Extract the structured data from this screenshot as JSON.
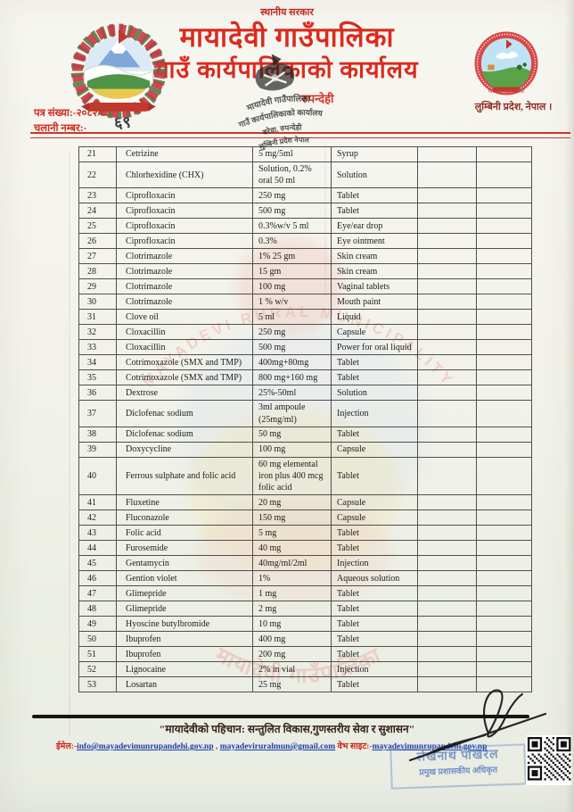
{
  "header": {
    "top_label": "स्थानीय सरकार",
    "title_line1": "मायादेवी गाउँपालिका",
    "title_line2": "गाउँ कार्यपालिकाको कार्यालय",
    "district_line": "रुपन्देही",
    "province_line": "लुम्बिनी प्रदेश, नेपाल ।",
    "letter_no_label": "पत्र संख्या:-",
    "letter_no": "२०८२/८३",
    "dispatch_label": "चलानी नम्बर:-",
    "dispatch_no": "६९",
    "right_logo_caption": "मायादेवी गाउँपालिका",
    "seal_lines": [
      "मायादेवी गाउँपालिका",
      "गाउँ कार्यपालिकाको कार्यालय",
      "बरेवा, रुपन्देही",
      "लुम्बिनी प्रदेश नेपाल"
    ]
  },
  "watermark": {
    "arc_text_en": "MAYADEVI RURAL MUNICIPALITY",
    "arc_text_np": "मायादेवी गाउँपालिका"
  },
  "table": {
    "rows": [
      {
        "sn": "21",
        "name": "Cetrizine",
        "strength": "5 mg/5ml",
        "form": "Syrup"
      },
      {
        "sn": "22",
        "name": "Chlorhexidine (CHX)",
        "strength": "Solution, 0.2% oral 50 ml",
        "form": "Solution"
      },
      {
        "sn": "23",
        "name": "Ciprofloxacin",
        "strength": "250 mg",
        "form": "Tablet"
      },
      {
        "sn": "24",
        "name": "Ciprofloxacin",
        "strength": "500 mg",
        "form": "Tablet"
      },
      {
        "sn": "25",
        "name": "Ciprofloxacin",
        "strength": "0.3%w/v 5 ml",
        "form": "Eye/ear drop"
      },
      {
        "sn": "26",
        "name": "Ciprofloxacin",
        "strength": "0.3%",
        "form": "Eye ointment"
      },
      {
        "sn": "27",
        "name": "Clotrimazole",
        "strength": "1% 25 gm",
        "form": "Skin cream"
      },
      {
        "sn": "28",
        "name": "Clotrimazole",
        "strength": "15 gm",
        "form": "Skin cream"
      },
      {
        "sn": "29",
        "name": "Clotrimazole",
        "strength": "100 mg",
        "form": "Vaginal tablets"
      },
      {
        "sn": "30",
        "name": "Clotrimazole",
        "strength": "1 % w/v",
        "form": "Mouth paint"
      },
      {
        "sn": "31",
        "name": "Clove oil",
        "strength": "5 ml",
        "form": "Liquid"
      },
      {
        "sn": "32",
        "name": "Cloxacillin",
        "strength": "250 mg",
        "form": "Capsule"
      },
      {
        "sn": "33",
        "name": "Cloxacillin",
        "strength": "500 mg",
        "form": "Power for oral liquid"
      },
      {
        "sn": "34",
        "name": "Cotrimoxazole (SMX and TMP)",
        "strength": "400mg+80mg",
        "form": "Tablet"
      },
      {
        "sn": "35",
        "name": "Cotrimoxazole (SMX and TMP)",
        "strength": "800 mg+160 mg",
        "form": "Tablet"
      },
      {
        "sn": "36",
        "name": "Dextrose",
        "strength": "25%-50ml",
        "form": "Solution"
      },
      {
        "sn": "37",
        "name": "Diclofenac sodium",
        "strength": "3ml ampoule (25mg/ml)",
        "form": "Injection"
      },
      {
        "sn": "38",
        "name": "Diclofenac sodium",
        "strength": "50 mg",
        "form": "Tablet"
      },
      {
        "sn": "39",
        "name": "Doxycycline",
        "strength": "100 mg",
        "form": "Capsule"
      },
      {
        "sn": "40",
        "name": "Ferrous sulphate and folic acid",
        "strength": "60 mg elemental iron plus 400 mcg folic acid",
        "form": "Tablet"
      },
      {
        "sn": "41",
        "name": "Fluxetine",
        "strength": "20 mg",
        "form": "Capsule"
      },
      {
        "sn": "42",
        "name": "Fluconazole",
        "strength": "150 mg",
        "form": "Capsule"
      },
      {
        "sn": "43",
        "name": "Folic acid",
        "strength": "5 mg",
        "form": "Tablet"
      },
      {
        "sn": "44",
        "name": "Furosemide",
        "strength": "40 mg",
        "form": "Tablet"
      },
      {
        "sn": "45",
        "name": "Gentamycin",
        "strength": "40mg/ml/2ml",
        "form": "Injection"
      },
      {
        "sn": "46",
        "name": "Gention violet",
        "strength": "1%",
        "form": "Aqueous solution"
      },
      {
        "sn": "47",
        "name": "Glimepride",
        "strength": "1 mg",
        "form": "Tablet"
      },
      {
        "sn": "48",
        "name": "Glimepride",
        "strength": "2 mg",
        "form": "Tablet"
      },
      {
        "sn": "49",
        "name": "Hyoscine butylbromide",
        "strength": "10 mg",
        "form": "Tablet"
      },
      {
        "sn": "50",
        "name": "Ibuprofen",
        "strength": "400 mg",
        "form": "Tablet"
      },
      {
        "sn": "51",
        "name": "Ibuprofen",
        "strength": "200 mg",
        "form": "Tablet"
      },
      {
        "sn": "52",
        "name": "Lignocaine",
        "strength": "2% in vial",
        "form": "Injection"
      },
      {
        "sn": "53",
        "name": "Losartan",
        "strength": "25 mg",
        "form": "Tablet"
      }
    ]
  },
  "footer": {
    "motto": "\"मायादेवीको पहिचान: सन्तुलित विकास,गुणस्तरीय सेवा र सुशासन\"",
    "email_label": "ईमेल:-",
    "email1": "info@mayadevimunrupandehi.gov.np",
    "separator": " , ",
    "email2": "mayadeviruralmun@gmail.com",
    "website_label": " वेभ साइट:-",
    "website": "mayadevimunrupandehi.gov.np",
    "officer_name": "लेखनाथ पोखरेल",
    "officer_title": "प्रमुख प्रशासकीय अधिकृत"
  },
  "colors": {
    "brand_red": "#da2b1f",
    "link_blue": "#1d3cab",
    "stamp_blue": "#6e8cc8",
    "ink_black": "#1c1c1c"
  }
}
